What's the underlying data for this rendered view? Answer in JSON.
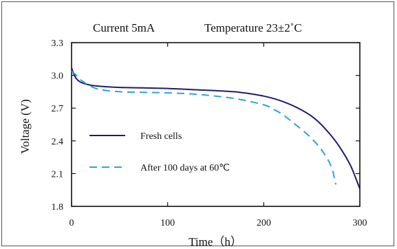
{
  "chart_data": {
    "type": "line",
    "header_left": "Current  5mA",
    "header_right": "Temperature  23±2˚C",
    "xlabel": "Time（h）",
    "ylabel": "Voltage (V)",
    "xlim": [
      0,
      300
    ],
    "ylim": [
      1.8,
      3.3
    ],
    "x_ticks": [
      0,
      100,
      200,
      300
    ],
    "x_tick_labels": [
      "0",
      "100",
      "200",
      "300"
    ],
    "y_ticks": [
      1.8,
      2.1,
      2.4,
      2.7,
      3.0,
      3.3
    ],
    "y_tick_labels": [
      "1.8",
      "2.1",
      "2.4",
      "2.7",
      "3.0",
      "3.3"
    ],
    "grid": false,
    "legend_position": "left",
    "series": [
      {
        "name": "Fresh cells",
        "color": "#1f1a6e",
        "style": "solid",
        "x": [
          0,
          2,
          5,
          10,
          20,
          30,
          50,
          75,
          100,
          125,
          150,
          175,
          200,
          220,
          240,
          255,
          270,
          280,
          290,
          297,
          300
        ],
        "y": [
          3.07,
          3.02,
          2.97,
          2.935,
          2.91,
          2.9,
          2.89,
          2.885,
          2.88,
          2.87,
          2.86,
          2.845,
          2.81,
          2.76,
          2.68,
          2.59,
          2.45,
          2.33,
          2.18,
          2.03,
          1.96
        ]
      },
      {
        "name": "After 100 days at 60℃",
        "color": "#2aa3dd",
        "style": "dashed",
        "x": [
          0,
          5,
          10,
          20,
          30,
          50,
          75,
          100,
          125,
          150,
          175,
          200,
          210,
          220,
          230,
          240,
          250,
          260,
          270,
          275
        ],
        "y": [
          3.04,
          3.0,
          2.955,
          2.9,
          2.87,
          2.85,
          2.845,
          2.84,
          2.83,
          2.81,
          2.78,
          2.73,
          2.69,
          2.64,
          2.57,
          2.5,
          2.42,
          2.32,
          2.17,
          2.0
        ]
      }
    ]
  }
}
